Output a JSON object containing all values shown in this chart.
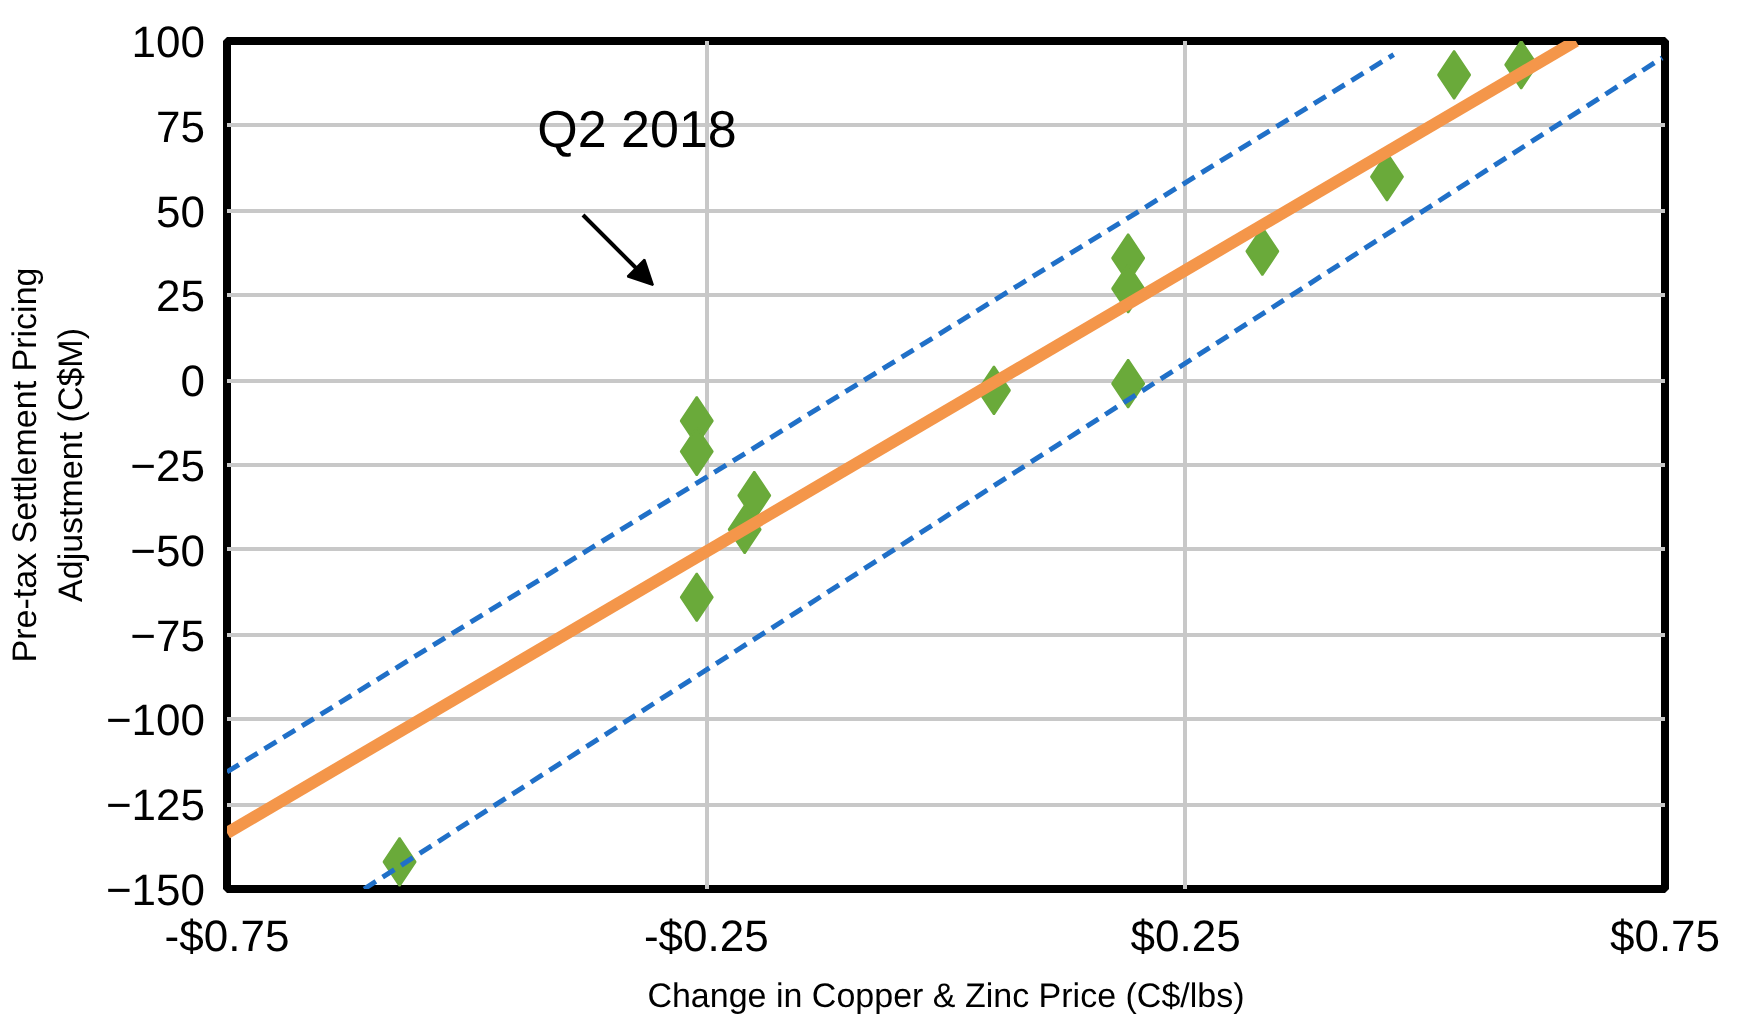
{
  "chart_data": {
    "type": "scatter",
    "xlabel": "Change in Copper & Zinc Price (C$/lbs)",
    "ylabel": "Pre-tax Settlement Pricing\nAdjustment (C$M)",
    "xlim": [
      -0.75,
      0.75
    ],
    "ylim": [
      -150,
      100
    ],
    "xticks": [
      {
        "value": -0.75,
        "label": "-$0.75"
      },
      {
        "value": -0.25,
        "label": "-$0.25"
      },
      {
        "value": 0.25,
        "label": "$0.25"
      },
      {
        "value": 0.75,
        "label": "$0.75"
      }
    ],
    "yticks": [
      -150,
      -125,
      -100,
      -75,
      -50,
      -25,
      0,
      25,
      50,
      75,
      100
    ],
    "grid": true,
    "series": [
      {
        "marker": "diamond",
        "color": "#6aaa3a",
        "x": [
          -0.57,
          -0.26,
          -0.26,
          -0.2,
          -0.21,
          -0.26,
          0.05,
          0.19,
          0.19,
          0.19,
          0.33,
          0.46,
          0.53,
          0.6
        ],
        "values": [
          -142,
          -12,
          -21,
          -34,
          -44,
          -64,
          -3,
          36,
          27,
          -1,
          38,
          60,
          90,
          93
        ]
      },
      {
        "type": "line",
        "color": "#2070c8",
        "line_style": "dashed",
        "x": [
          -0.75,
          0.467
        ],
        "values": [
          -115.5,
          96
        ]
      },
      {
        "type": "line",
        "color": "#2070c8",
        "line_style": "dashed",
        "x": [
          -0.607,
          0.747
        ],
        "values": [
          -150,
          95
        ]
      },
      {
        "type": "line",
        "color": "#f4964a",
        "line_style": "solid",
        "x": [
          -0.75,
          0.657
        ],
        "values": [
          -133.5,
          100
        ]
      }
    ],
    "annotations": [
      "Q2 2018"
    ]
  }
}
